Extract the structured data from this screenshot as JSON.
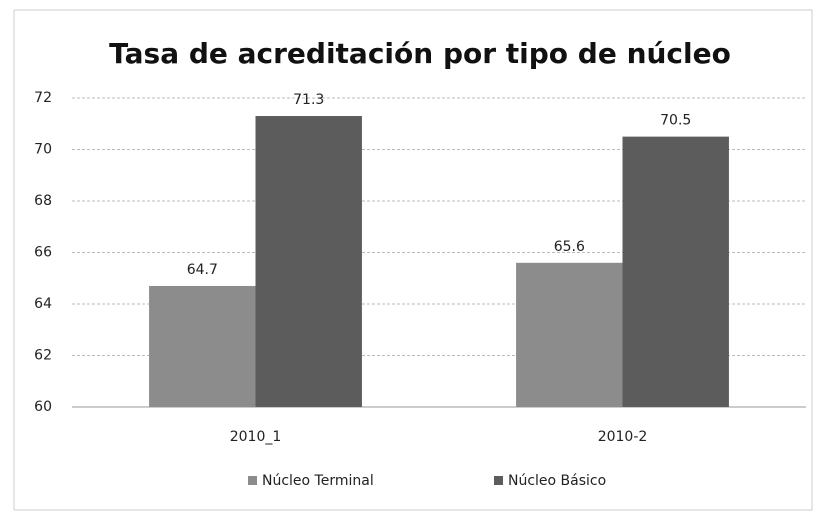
{
  "chart_data": {
    "type": "bar",
    "title": "Tasa de acreditación por tipo de núcleo",
    "categories": [
      "2010_1",
      "2010-2"
    ],
    "series": [
      {
        "name": "Núcleo Terminal",
        "color": "#8c8c8c",
        "values": [
          64.7,
          65.6
        ]
      },
      {
        "name": "Núcleo Básico",
        "color": "#5c5c5c",
        "values": [
          71.3,
          70.5
        ]
      }
    ],
    "ylim": [
      60,
      72
    ],
    "yticks": [
      60,
      62,
      64,
      66,
      68,
      70,
      72
    ],
    "grid": true,
    "legend": "bottom"
  }
}
